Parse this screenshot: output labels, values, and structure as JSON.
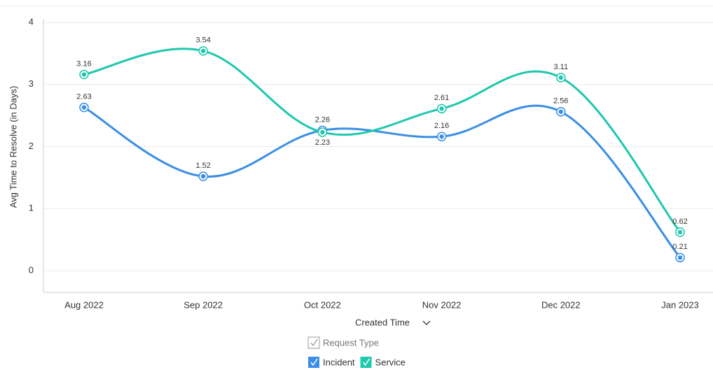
{
  "chart_data": {
    "type": "line",
    "y_label": "Avg Time to Resolve (in Days)",
    "x_label": "Created Time",
    "legend_title": "Request Type",
    "categories": [
      "Aug 2022",
      "Sep 2022",
      "Oct 2022",
      "Nov 2022",
      "Dec 2022",
      "Jan 2023"
    ],
    "series": [
      {
        "name": "Incident",
        "color": "#3a8ee6",
        "values": [
          2.63,
          1.52,
          2.26,
          2.16,
          2.56,
          0.21
        ]
      },
      {
        "name": "Service",
        "color": "#1fc7ad",
        "values": [
          3.16,
          3.54,
          2.23,
          2.61,
          3.11,
          0.62
        ]
      }
    ],
    "ylim": [
      -0.35,
      4
    ],
    "yticks": [
      0,
      1,
      2,
      3,
      4
    ],
    "grid": true
  }
}
